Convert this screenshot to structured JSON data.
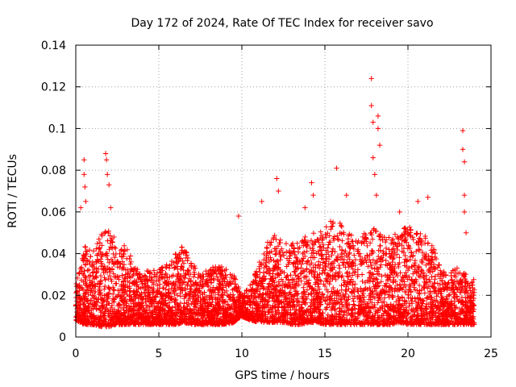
{
  "chart_data": {
    "type": "scatter",
    "title": "Day 172 of 2024, Rate Of TEC Index for receiver savo",
    "xlabel": "GPS time / hours",
    "ylabel": "ROTI / TECUs",
    "xlim": [
      0,
      25
    ],
    "ylim": [
      0,
      0.14
    ],
    "xticks": [
      0,
      5,
      10,
      15,
      20,
      25
    ],
    "yticks": [
      0,
      0.02,
      0.04,
      0.06,
      0.08,
      0.1,
      0.12,
      0.14
    ],
    "xtick_labels": [
      "0",
      "5",
      "10",
      "15",
      "20",
      "25"
    ],
    "ytick_labels": [
      "0",
      "0.02",
      "0.04",
      "0.06",
      "0.08",
      "0.1",
      "0.12",
      "0.14"
    ],
    "grid": true,
    "marker": "+",
    "color": "#ff0000",
    "x_range_hours": [
      0,
      24
    ],
    "envelope": {
      "x": [
        0,
        0.5,
        1,
        1.5,
        2,
        2.5,
        3,
        3.5,
        4,
        4.5,
        5,
        5.5,
        6,
        6.5,
        7,
        7.5,
        8,
        8.5,
        9,
        9.5,
        10,
        10.5,
        11,
        11.5,
        12,
        12.5,
        13,
        13.5,
        14,
        14.5,
        15,
        15.5,
        16,
        16.5,
        17,
        17.5,
        18,
        18.5,
        19,
        19.5,
        20,
        20.5,
        21,
        21.5,
        22,
        22.5,
        23,
        23.5,
        24
      ],
      "y_max_typical": [
        0.025,
        0.045,
        0.04,
        0.05,
        0.055,
        0.045,
        0.045,
        0.035,
        0.03,
        0.033,
        0.033,
        0.035,
        0.04,
        0.045,
        0.035,
        0.032,
        0.032,
        0.035,
        0.033,
        0.03,
        0.02,
        0.025,
        0.035,
        0.045,
        0.05,
        0.045,
        0.045,
        0.045,
        0.05,
        0.05,
        0.052,
        0.06,
        0.055,
        0.05,
        0.05,
        0.05,
        0.055,
        0.05,
        0.05,
        0.05,
        0.055,
        0.05,
        0.05,
        0.045,
        0.032,
        0.03,
        0.035,
        0.03,
        0.028
      ],
      "y_min_typical": [
        0.008,
        0.006,
        0.006,
        0.005,
        0.005,
        0.006,
        0.006,
        0.006,
        0.006,
        0.006,
        0.006,
        0.006,
        0.006,
        0.007,
        0.006,
        0.006,
        0.006,
        0.006,
        0.006,
        0.007,
        0.01,
        0.008,
        0.007,
        0.007,
        0.007,
        0.007,
        0.006,
        0.006,
        0.007,
        0.007,
        0.006,
        0.006,
        0.006,
        0.006,
        0.006,
        0.006,
        0.006,
        0.006,
        0.006,
        0.007,
        0.006,
        0.006,
        0.006,
        0.006,
        0.006,
        0.006,
        0.006,
        0.006,
        0.006
      ]
    },
    "outliers": [
      {
        "x": 0.5,
        "y": 0.085
      },
      {
        "x": 0.5,
        "y": 0.078
      },
      {
        "x": 0.55,
        "y": 0.072
      },
      {
        "x": 0.6,
        "y": 0.065
      },
      {
        "x": 1.8,
        "y": 0.088
      },
      {
        "x": 1.85,
        "y": 0.085
      },
      {
        "x": 1.9,
        "y": 0.078
      },
      {
        "x": 2.0,
        "y": 0.073
      },
      {
        "x": 2.1,
        "y": 0.062
      },
      {
        "x": 9.8,
        "y": 0.058
      },
      {
        "x": 11.2,
        "y": 0.065
      },
      {
        "x": 12.1,
        "y": 0.076
      },
      {
        "x": 12.2,
        "y": 0.07
      },
      {
        "x": 14.2,
        "y": 0.074
      },
      {
        "x": 14.3,
        "y": 0.068
      },
      {
        "x": 15.7,
        "y": 0.081
      },
      {
        "x": 16.3,
        "y": 0.068
      },
      {
        "x": 17.8,
        "y": 0.124
      },
      {
        "x": 17.8,
        "y": 0.111
      },
      {
        "x": 17.9,
        "y": 0.103
      },
      {
        "x": 17.9,
        "y": 0.086
      },
      {
        "x": 18.0,
        "y": 0.078
      },
      {
        "x": 18.1,
        "y": 0.068
      },
      {
        "x": 18.2,
        "y": 0.106
      },
      {
        "x": 18.2,
        "y": 0.1
      },
      {
        "x": 18.3,
        "y": 0.092
      },
      {
        "x": 20.6,
        "y": 0.065
      },
      {
        "x": 21.2,
        "y": 0.067
      },
      {
        "x": 23.3,
        "y": 0.099
      },
      {
        "x": 23.3,
        "y": 0.09
      },
      {
        "x": 23.4,
        "y": 0.084
      },
      {
        "x": 23.4,
        "y": 0.068
      },
      {
        "x": 23.4,
        "y": 0.06
      },
      {
        "x": 23.5,
        "y": 0.05
      },
      {
        "x": 0.3,
        "y": 0.062
      },
      {
        "x": 13.8,
        "y": 0.062
      },
      {
        "x": 19.5,
        "y": 0.06
      }
    ]
  }
}
